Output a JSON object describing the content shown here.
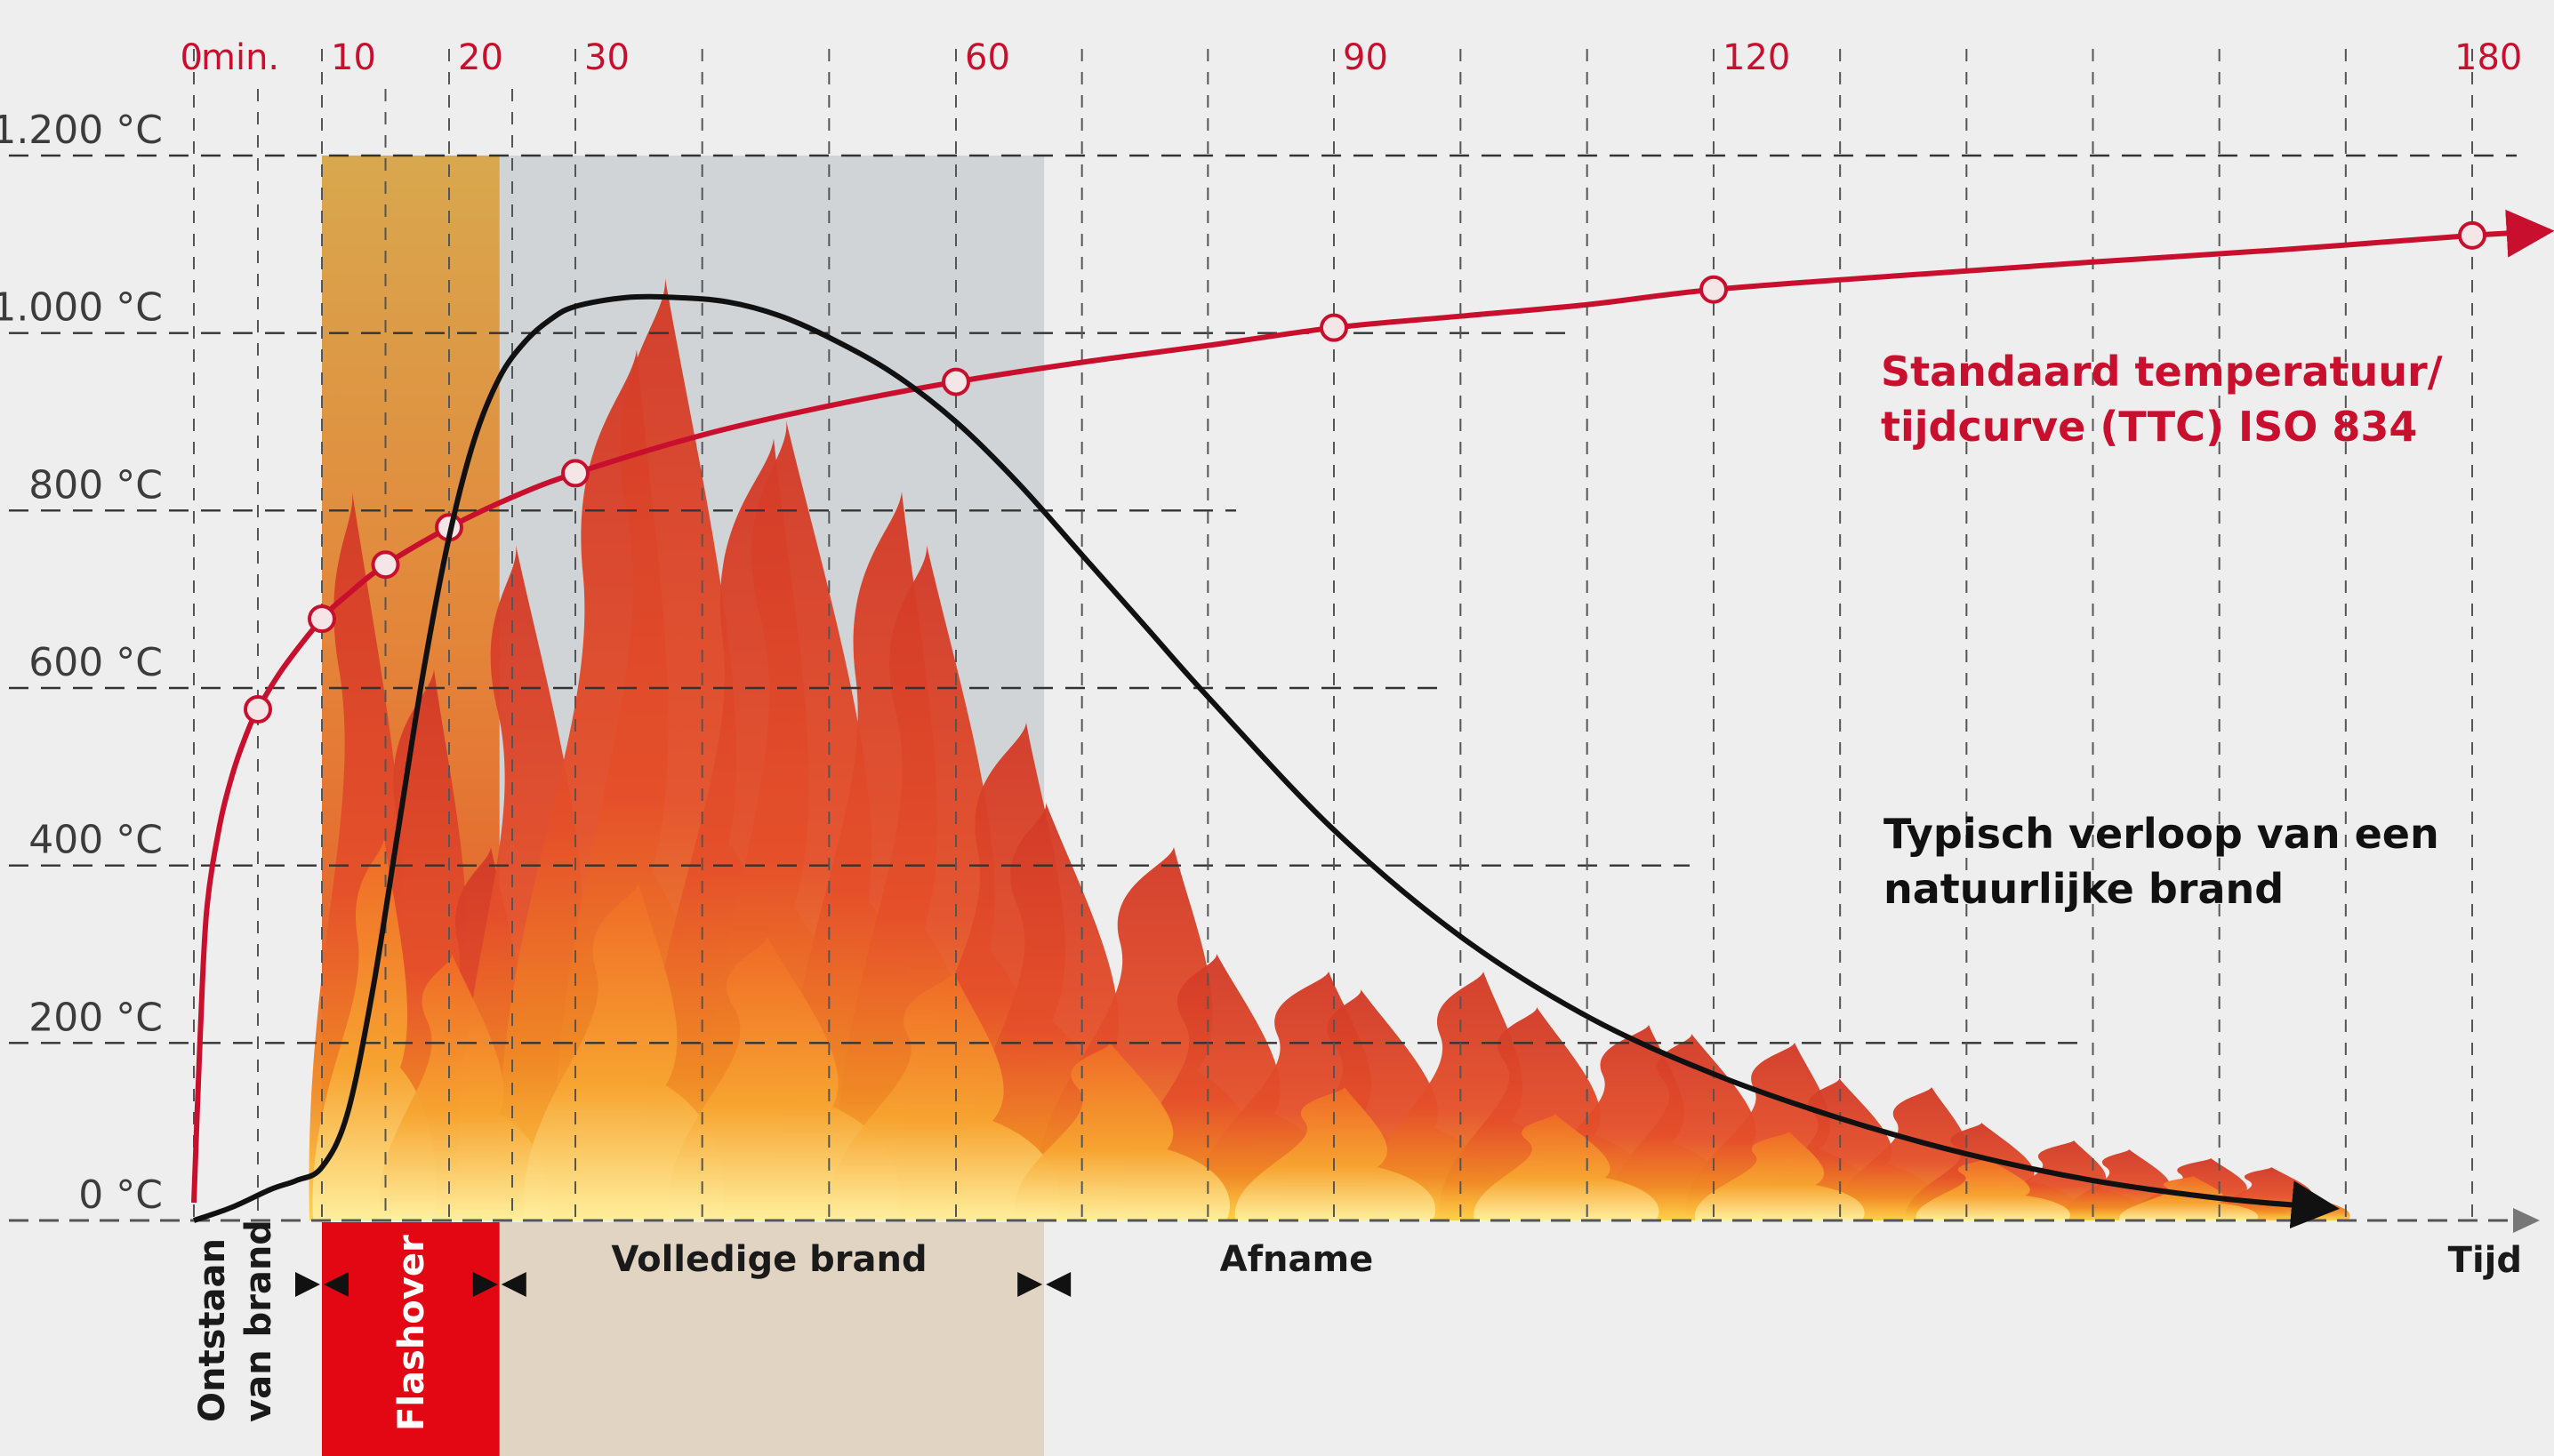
{
  "chart_data": {
    "type": "line",
    "x_unit_label": "min.",
    "x_ticks": [
      0,
      10,
      20,
      30,
      60,
      90,
      120,
      180
    ],
    "x_axis_label": "Tijd",
    "y_ticks": [
      {
        "value": 0,
        "label": "0 °C"
      },
      {
        "value": 200,
        "label": "200 °C"
      },
      {
        "value": 400,
        "label": "400 °C"
      },
      {
        "value": 600,
        "label": "600 °C"
      },
      {
        "value": 800,
        "label": "800 °C"
      },
      {
        "value": 1000,
        "label": "1.000 °C"
      },
      {
        "value": 1200,
        "label": "1.200 °C"
      }
    ],
    "ylim": [
      0,
      1200
    ],
    "xlim": [
      0,
      180
    ],
    "grid": true,
    "series": [
      {
        "name": "Standaard temperatuur/ tijdcurve (TTC) ISO 834",
        "name_lines": [
          "Standaard temperatuur/",
          "tijdcurve (TTC) ISO 834"
        ],
        "color": "#c8102e",
        "x": [
          0,
          0.5,
          1,
          2,
          3,
          4,
          5,
          7,
          10,
          12,
          15,
          20,
          25,
          30,
          40,
          50,
          60,
          70,
          80,
          90,
          100,
          110,
          120,
          135,
          150,
          165,
          180,
          185
        ],
        "y": [
          20,
          210,
          349,
          444,
          502,
          544,
          576,
          623,
          678,
          705,
          739,
          781,
          815,
          842,
          885,
          918,
          945,
          967,
          986,
          1006,
          1019,
          1032,
          1049,
          1065,
          1080,
          1094,
          1110,
          1114
        ],
        "markers_x": [
          5,
          10,
          15,
          20,
          30,
          60,
          90,
          120,
          180
        ],
        "markers_y": [
          576,
          678,
          739,
          781,
          842,
          945,
          1006,
          1049,
          1110
        ]
      },
      {
        "name": "Typisch verloop van een natuurlijke brand",
        "name_lines": [
          "Typisch verloop van een",
          "natuurlijke brand"
        ],
        "color": "#111111",
        "x": [
          0,
          3,
          6,
          8,
          10,
          12,
          14,
          16,
          18,
          20,
          22,
          24,
          26,
          28,
          30,
          34,
          38,
          42,
          46,
          50,
          55,
          60,
          65,
          70,
          75,
          80,
          90,
          100,
          110,
          120,
          130,
          140,
          150,
          160,
          168
        ],
        "y": [
          0,
          15,
          35,
          45,
          60,
          120,
          260,
          440,
          620,
          770,
          880,
          950,
          990,
          1015,
          1030,
          1040,
          1040,
          1035,
          1020,
          995,
          955,
          900,
          830,
          750,
          670,
          590,
          440,
          320,
          230,
          165,
          115,
          75,
          45,
          25,
          15
        ]
      }
    ],
    "phases": [
      {
        "label_lines": [
          "Ontstaan",
          "van brand"
        ],
        "from": 0,
        "to": 10,
        "color": "#eeeeee"
      },
      {
        "label_lines": [
          "Flashover"
        ],
        "from": 10,
        "to": 24,
        "color": "#e30613"
      },
      {
        "label_lines": [
          "Volledige brand"
        ],
        "from": 24,
        "to": 67,
        "color": "#e2d4c3"
      },
      {
        "label_lines": [
          "Afname"
        ],
        "from": 67,
        "to": 180,
        "color": "#eeeeee"
      }
    ]
  }
}
